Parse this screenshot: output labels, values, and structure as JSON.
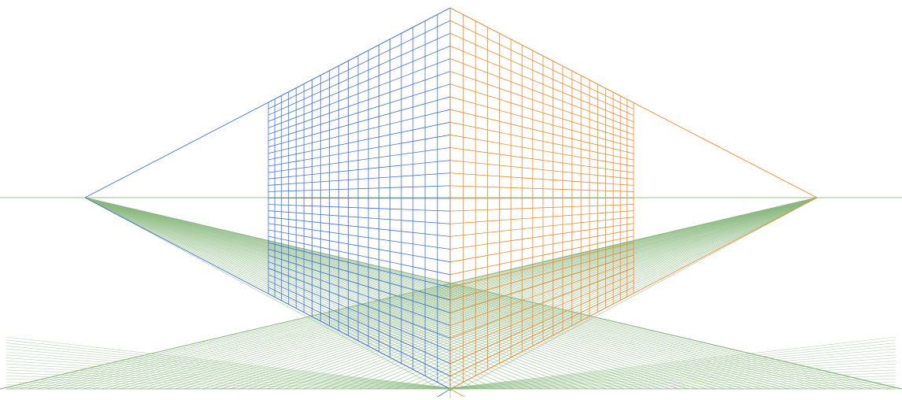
{
  "diagram": {
    "kind": "two-point perspective grid",
    "colors": {
      "ground": "#8cba82",
      "left_wall": "#3f73d8",
      "right_wall": "#ef8a2f",
      "horizon": "#8cba82",
      "background": "#ffffff"
    },
    "left_wall_divisions": {
      "vertical": 19,
      "horizontal": 15
    },
    "right_wall_divisions": {
      "vertical": 19,
      "horizontal": 15
    },
    "ground_rays_per_vanishing_point": 60
  }
}
